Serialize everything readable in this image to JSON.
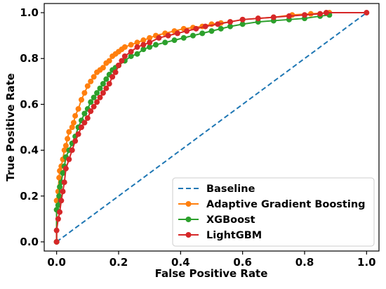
{
  "chart_data": {
    "type": "line",
    "title": "",
    "xlabel": "False Positive Rate",
    "ylabel": "True Positive Rate",
    "xlim": [
      -0.04,
      1.04
    ],
    "ylim": [
      -0.04,
      1.04
    ],
    "xticks": [
      "0.0",
      "0.2",
      "0.4",
      "0.6",
      "0.8",
      "1.0"
    ],
    "yticks": [
      "0.0",
      "0.2",
      "0.4",
      "0.6",
      "0.8",
      "1.0"
    ],
    "grid": false,
    "legend_position": "lower-right",
    "series": [
      {
        "name": "Baseline",
        "color": "#1f77b4",
        "style": "dashed",
        "markers": false,
        "x": [
          0,
          1
        ],
        "y": [
          0,
          1
        ]
      },
      {
        "name": "Adaptive Gradient Boosting",
        "color": "#ff7f0e",
        "style": "solid",
        "markers": true,
        "x": [
          0,
          0,
          0.005,
          0.008,
          0.01,
          0.015,
          0.02,
          0.025,
          0.03,
          0.035,
          0.04,
          0.05,
          0.055,
          0.06,
          0.07,
          0.08,
          0.09,
          0.1,
          0.11,
          0.12,
          0.13,
          0.14,
          0.15,
          0.16,
          0.17,
          0.18,
          0.19,
          0.2,
          0.21,
          0.22,
          0.24,
          0.26,
          0.28,
          0.3,
          0.32,
          0.35,
          0.38,
          0.41,
          0.44,
          0.47,
          0.5,
          0.53,
          0.56,
          0.6,
          0.65,
          0.7,
          0.76,
          0.82,
          0.88
        ],
        "y": [
          0,
          0.18,
          0.22,
          0.28,
          0.31,
          0.33,
          0.36,
          0.4,
          0.42,
          0.45,
          0.48,
          0.5,
          0.52,
          0.55,
          0.58,
          0.62,
          0.65,
          0.68,
          0.7,
          0.72,
          0.74,
          0.75,
          0.76,
          0.78,
          0.79,
          0.81,
          0.82,
          0.83,
          0.84,
          0.85,
          0.86,
          0.87,
          0.88,
          0.89,
          0.9,
          0.91,
          0.92,
          0.93,
          0.935,
          0.94,
          0.95,
          0.955,
          0.96,
          0.97,
          0.975,
          0.98,
          0.99,
          0.995,
          1.0
        ]
      },
      {
        "name": "XGBoost",
        "color": "#2ca02c",
        "style": "solid",
        "markers": true,
        "x": [
          0,
          0,
          0.005,
          0.008,
          0.01,
          0.015,
          0.02,
          0.025,
          0.03,
          0.04,
          0.05,
          0.06,
          0.07,
          0.08,
          0.09,
          0.1,
          0.11,
          0.12,
          0.13,
          0.14,
          0.15,
          0.16,
          0.17,
          0.18,
          0.19,
          0.2,
          0.22,
          0.24,
          0.26,
          0.28,
          0.3,
          0.32,
          0.35,
          0.38,
          0.41,
          0.44,
          0.47,
          0.5,
          0.53,
          0.56,
          0.6,
          0.65,
          0.7,
          0.75,
          0.8,
          0.85,
          0.88
        ],
        "y": [
          0,
          0.14,
          0.16,
          0.2,
          0.24,
          0.26,
          0.3,
          0.33,
          0.37,
          0.4,
          0.43,
          0.46,
          0.5,
          0.53,
          0.56,
          0.58,
          0.61,
          0.63,
          0.65,
          0.67,
          0.69,
          0.71,
          0.73,
          0.75,
          0.76,
          0.77,
          0.79,
          0.81,
          0.82,
          0.84,
          0.85,
          0.86,
          0.87,
          0.88,
          0.89,
          0.9,
          0.91,
          0.92,
          0.93,
          0.94,
          0.95,
          0.96,
          0.965,
          0.97,
          0.975,
          0.985,
          0.99
        ]
      },
      {
        "name": "LightGBM",
        "color": "#d62728",
        "style": "solid",
        "markers": true,
        "x": [
          0,
          0,
          0.005,
          0.01,
          0.015,
          0.02,
          0.025,
          0.03,
          0.04,
          0.05,
          0.06,
          0.07,
          0.08,
          0.09,
          0.1,
          0.11,
          0.12,
          0.13,
          0.14,
          0.15,
          0.16,
          0.17,
          0.18,
          0.19,
          0.2,
          0.21,
          0.22,
          0.24,
          0.26,
          0.28,
          0.3,
          0.33,
          0.36,
          0.39,
          0.42,
          0.45,
          0.48,
          0.52,
          0.56,
          0.6,
          0.65,
          0.7,
          0.75,
          0.8,
          0.85,
          0.87,
          1.0
        ],
        "y": [
          0,
          0.05,
          0.1,
          0.13,
          0.18,
          0.22,
          0.26,
          0.32,
          0.36,
          0.4,
          0.44,
          0.47,
          0.5,
          0.52,
          0.54,
          0.57,
          0.59,
          0.61,
          0.63,
          0.65,
          0.67,
          0.69,
          0.72,
          0.74,
          0.77,
          0.79,
          0.81,
          0.83,
          0.85,
          0.86,
          0.87,
          0.89,
          0.9,
          0.91,
          0.92,
          0.93,
          0.94,
          0.95,
          0.96,
          0.97,
          0.975,
          0.98,
          0.985,
          0.99,
          0.995,
          1.0,
          1.0
        ]
      }
    ]
  }
}
